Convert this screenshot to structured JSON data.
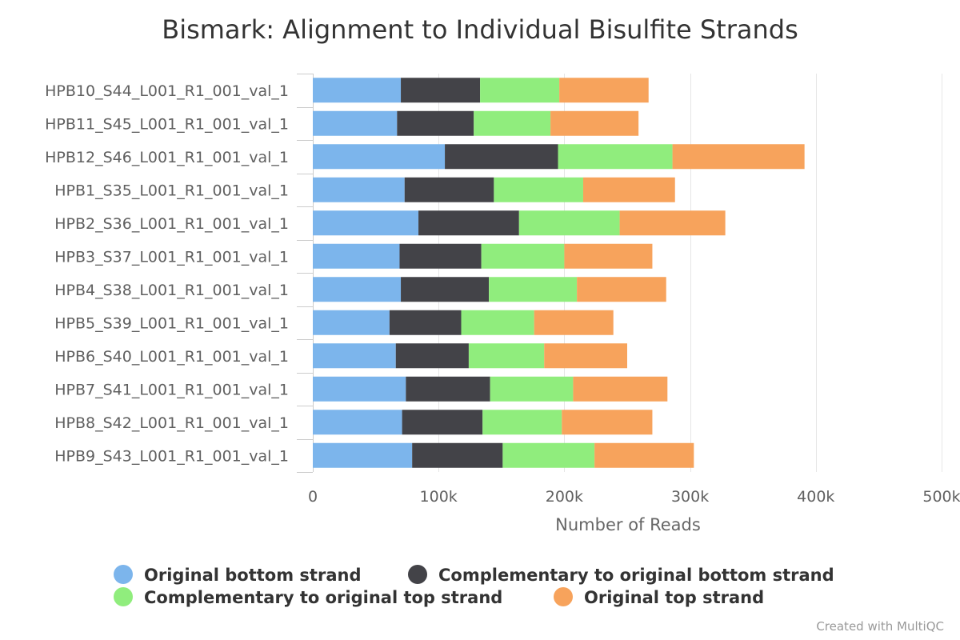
{
  "chart_data": {
    "type": "bar",
    "orientation": "horizontal",
    "stacked": true,
    "title": "Bismark: Alignment to Individual Bisulfite Strands",
    "xlabel": "Number of Reads",
    "ylabel": "",
    "xlim": [
      0,
      500000
    ],
    "xticks": [
      0,
      100000,
      200000,
      300000,
      400000,
      500000
    ],
    "xtick_labels": [
      "0",
      "100k",
      "200k",
      "300k",
      "400k",
      "500k"
    ],
    "grid": true,
    "legend_position": "bottom",
    "categories": [
      "HPB10_S44_L001_R1_001_val_1",
      "HPB11_S45_L001_R1_001_val_1",
      "HPB12_S46_L001_R1_001_val_1",
      "HPB1_S35_L001_R1_001_val_1",
      "HPB2_S36_L001_R1_001_val_1",
      "HPB3_S37_L001_R1_001_val_1",
      "HPB4_S38_L001_R1_001_val_1",
      "HPB5_S39_L001_R1_001_val_1",
      "HPB6_S40_L001_R1_001_val_1",
      "HPB7_S41_L001_R1_001_val_1",
      "HPB8_S42_L001_R1_001_val_1",
      "HPB9_S43_L001_R1_001_val_1"
    ],
    "series": [
      {
        "name": "Original bottom strand",
        "color": "#7cb5ec",
        "values": [
          70000,
          67000,
          105000,
          73000,
          84000,
          69000,
          70000,
          61000,
          66000,
          74000,
          71000,
          79000
        ]
      },
      {
        "name": "Complementary to original bottom strand",
        "color": "#434348",
        "values": [
          63000,
          61000,
          90000,
          71000,
          80000,
          65000,
          70000,
          57000,
          58000,
          67000,
          64000,
          72000
        ]
      },
      {
        "name": "Complementary to original top strand",
        "color": "#90ed7d",
        "values": [
          63000,
          61000,
          91000,
          71000,
          80000,
          66000,
          70000,
          58000,
          60000,
          66000,
          63000,
          73000
        ]
      },
      {
        "name": "Original top strand",
        "color": "#f7a35c",
        "values": [
          71000,
          70000,
          105000,
          73000,
          84000,
          70000,
          71000,
          63000,
          66000,
          75000,
          72000,
          79000
        ]
      }
    ],
    "credit": "Created with MultiQC"
  }
}
